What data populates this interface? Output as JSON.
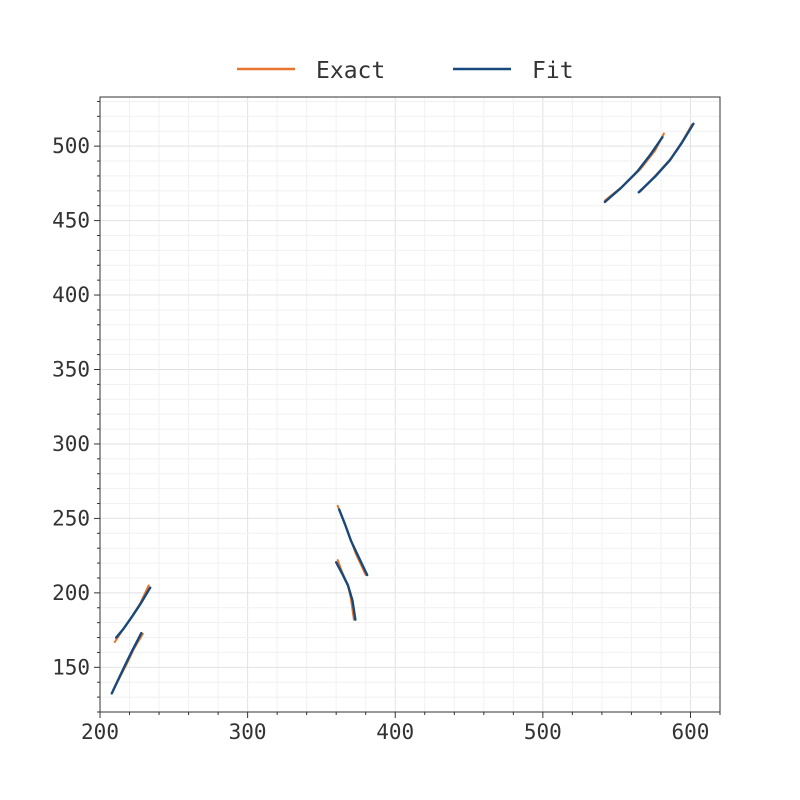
{
  "chart_data": {
    "type": "line",
    "xlim": [
      200,
      620
    ],
    "ylim": [
      120,
      533
    ],
    "x_ticks": [
      "200",
      "300",
      "400",
      "500",
      "600"
    ],
    "y_ticks": [
      "150",
      "200",
      "250",
      "300",
      "350",
      "400",
      "450",
      "500"
    ],
    "grid": true,
    "legend_position": "top-center",
    "legend": [
      "Exact",
      "Fit"
    ],
    "series": [
      {
        "name": "Exact",
        "color": "#e8742f",
        "segments": [
          [
            [
              210.0,
              167.0
            ],
            [
              215.0,
              174.5
            ],
            [
              221.0,
              183.0
            ],
            [
              227.0,
              192.5
            ],
            [
              233.0,
              205.0
            ]
          ],
          [
            [
              209.0,
              135.0
            ],
            [
              213.0,
              142.5
            ],
            [
              218.0,
              152.0
            ],
            [
              223.0,
              162.5
            ],
            [
              229.0,
              172.5
            ]
          ],
          [
            [
              361.0,
              258.5
            ],
            [
              364.0,
              251.0
            ],
            [
              368.0,
              241.0
            ],
            [
              373.0,
              227.0
            ],
            [
              380.0,
              212.0
            ]
          ],
          [
            [
              361.0,
              222.0
            ],
            [
              364.0,
              214.0
            ],
            [
              368.0,
              205.0
            ],
            [
              370.0,
              196.0
            ],
            [
              372.0,
              182.0
            ]
          ],
          [
            [
              542.0,
              463.5
            ],
            [
              554.0,
              473.0
            ],
            [
              566.0,
              484.5
            ],
            [
              576.0,
              497.0
            ],
            [
              582.0,
              508.5
            ]
          ],
          [
            [
              566.0,
              469.5
            ],
            [
              577.0,
              481.0
            ],
            [
              587.0,
              492.0
            ],
            [
              595.0,
              504.0
            ],
            [
              601.0,
              514.5
            ]
          ]
        ]
      },
      {
        "name": "Fit",
        "color": "#17497c",
        "segments": [
          [
            [
              211.0,
              170.0
            ],
            [
              216.0,
              176.0
            ],
            [
              222.0,
              184.5
            ],
            [
              228.0,
              193.5
            ],
            [
              234.0,
              203.5
            ]
          ],
          [
            [
              208.0,
              132.5
            ],
            [
              212.0,
              141.0
            ],
            [
              217.0,
              151.5
            ],
            [
              222.0,
              161.5
            ],
            [
              228.0,
              173.0
            ]
          ],
          [
            [
              362.0,
              256.0
            ],
            [
              366.0,
              246.0
            ],
            [
              370.0,
              235.0
            ],
            [
              375.0,
              224.5
            ],
            [
              381.0,
              212.0
            ]
          ],
          [
            [
              360.0,
              220.5
            ],
            [
              364.0,
              213.0
            ],
            [
              368.0,
              205.0
            ],
            [
              371.0,
              195.0
            ],
            [
              373.0,
              182.0
            ]
          ],
          [
            [
              542.0,
              462.5
            ],
            [
              553.0,
              472.0
            ],
            [
              564.0,
              483.0
            ],
            [
              573.0,
              494.5
            ],
            [
              581.0,
              506.0
            ]
          ],
          [
            [
              565.0,
              469.0
            ],
            [
              576.0,
              479.5
            ],
            [
              586.0,
              490.5
            ],
            [
              594.0,
              502.0
            ],
            [
              602.0,
              515.0
            ]
          ]
        ]
      }
    ]
  }
}
